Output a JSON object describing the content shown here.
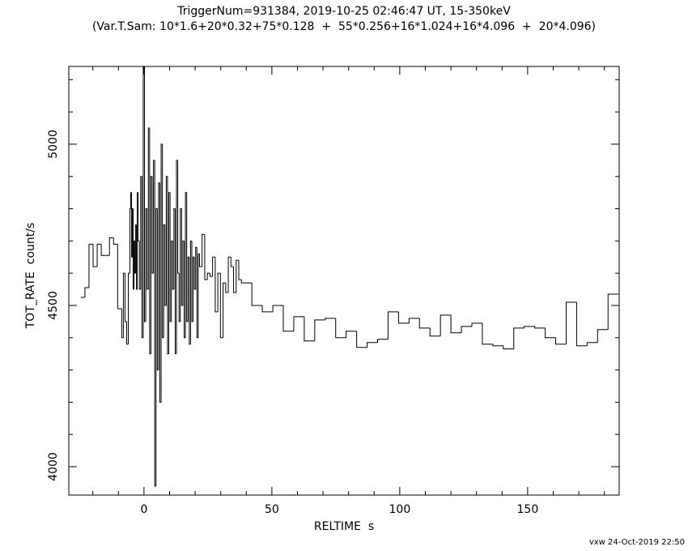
{
  "chart_data": {
    "type": "step",
    "title": "TriggerNum=931384, 2019-10-25 02:46:47 UT, 15-350keV",
    "subtitle": "(Var.T.Sam: 10*1.6+20*0.32+75*0.128  +  55*0.256+16*1.024+16*4.096  +  20*4.096)",
    "x_label": "RELTIME  s",
    "y_label": "TOT_RATE  count/s",
    "footer": "vxw 24-Oct-2019 22:50",
    "color": "#000000",
    "xlim": [
      -29.4,
      185.8
    ],
    "ylim": [
      3912,
      5241
    ],
    "xticks": [
      0,
      50,
      100,
      150
    ],
    "yticks": [
      4000,
      4500,
      5000
    ],
    "xminorticks": [
      -20,
      -10,
      10,
      20,
      30,
      40,
      60,
      70,
      80,
      90,
      110,
      120,
      130,
      140,
      160,
      170,
      180
    ],
    "yminorticks": [
      4100,
      4200,
      4300,
      4400,
      4600,
      4700,
      4800,
      4900,
      5100,
      5200
    ],
    "segments": [
      {
        "start": -24.7,
        "width": 1.6,
        "values": [
          4525,
          4555,
          4690,
          4620,
          4690,
          4655,
          4655,
          4710,
          4690,
          4490
        ]
      },
      {
        "start": -8.7,
        "width": 0.32,
        "values": [
          4400,
          4400,
          4600,
          4600,
          4450,
          4450,
          4380,
          4380,
          4600,
          4600,
          4800,
          4850,
          4650,
          4800,
          4550,
          4700,
          4600,
          4750,
          4550,
          4850
        ]
      },
      {
        "start": -2.3,
        "width": 0.5,
        "values": [
          4700,
          4550,
          4900,
          4400,
          5240,
          4450,
          4800,
          4550,
          5050,
          4350,
          4900,
          4600,
          4950,
          3940,
          4800,
          4300,
          4880,
          4200,
          5000,
          4400,
          4750,
          4500,
          4900,
          4350,
          4850,
          4450,
          4700,
          4550,
          4800,
          4350,
          4950,
          4600,
          4450,
          4800,
          4500,
          4700,
          4400,
          4850,
          4450,
          4650,
          4380,
          4700,
          4450,
          4650,
          4550,
          4680,
          4400,
          4660
        ]
      },
      {
        "start": 21.7,
        "width": 1.024,
        "values": [
          4620,
          4720,
          4580,
          4600,
          4590,
          4650,
          4480,
          4600,
          4400,
          4570,
          4540,
          4650,
          4620,
          4540,
          4640,
          4580
        ]
      },
      {
        "start": 38.084,
        "width": 4.096,
        "values": [
          4570,
          4500,
          4480,
          4500,
          4420,
          4465,
          4390,
          4455,
          4460,
          4400,
          4420,
          4370,
          4385,
          4395,
          4480,
          4445,
          4460,
          4430,
          4405,
          4470,
          4415,
          4435,
          4445,
          4380,
          4375,
          4365,
          4430,
          4435,
          4430,
          4400,
          4380,
          4510,
          4375,
          4385,
          4425,
          4535
        ]
      }
    ]
  }
}
